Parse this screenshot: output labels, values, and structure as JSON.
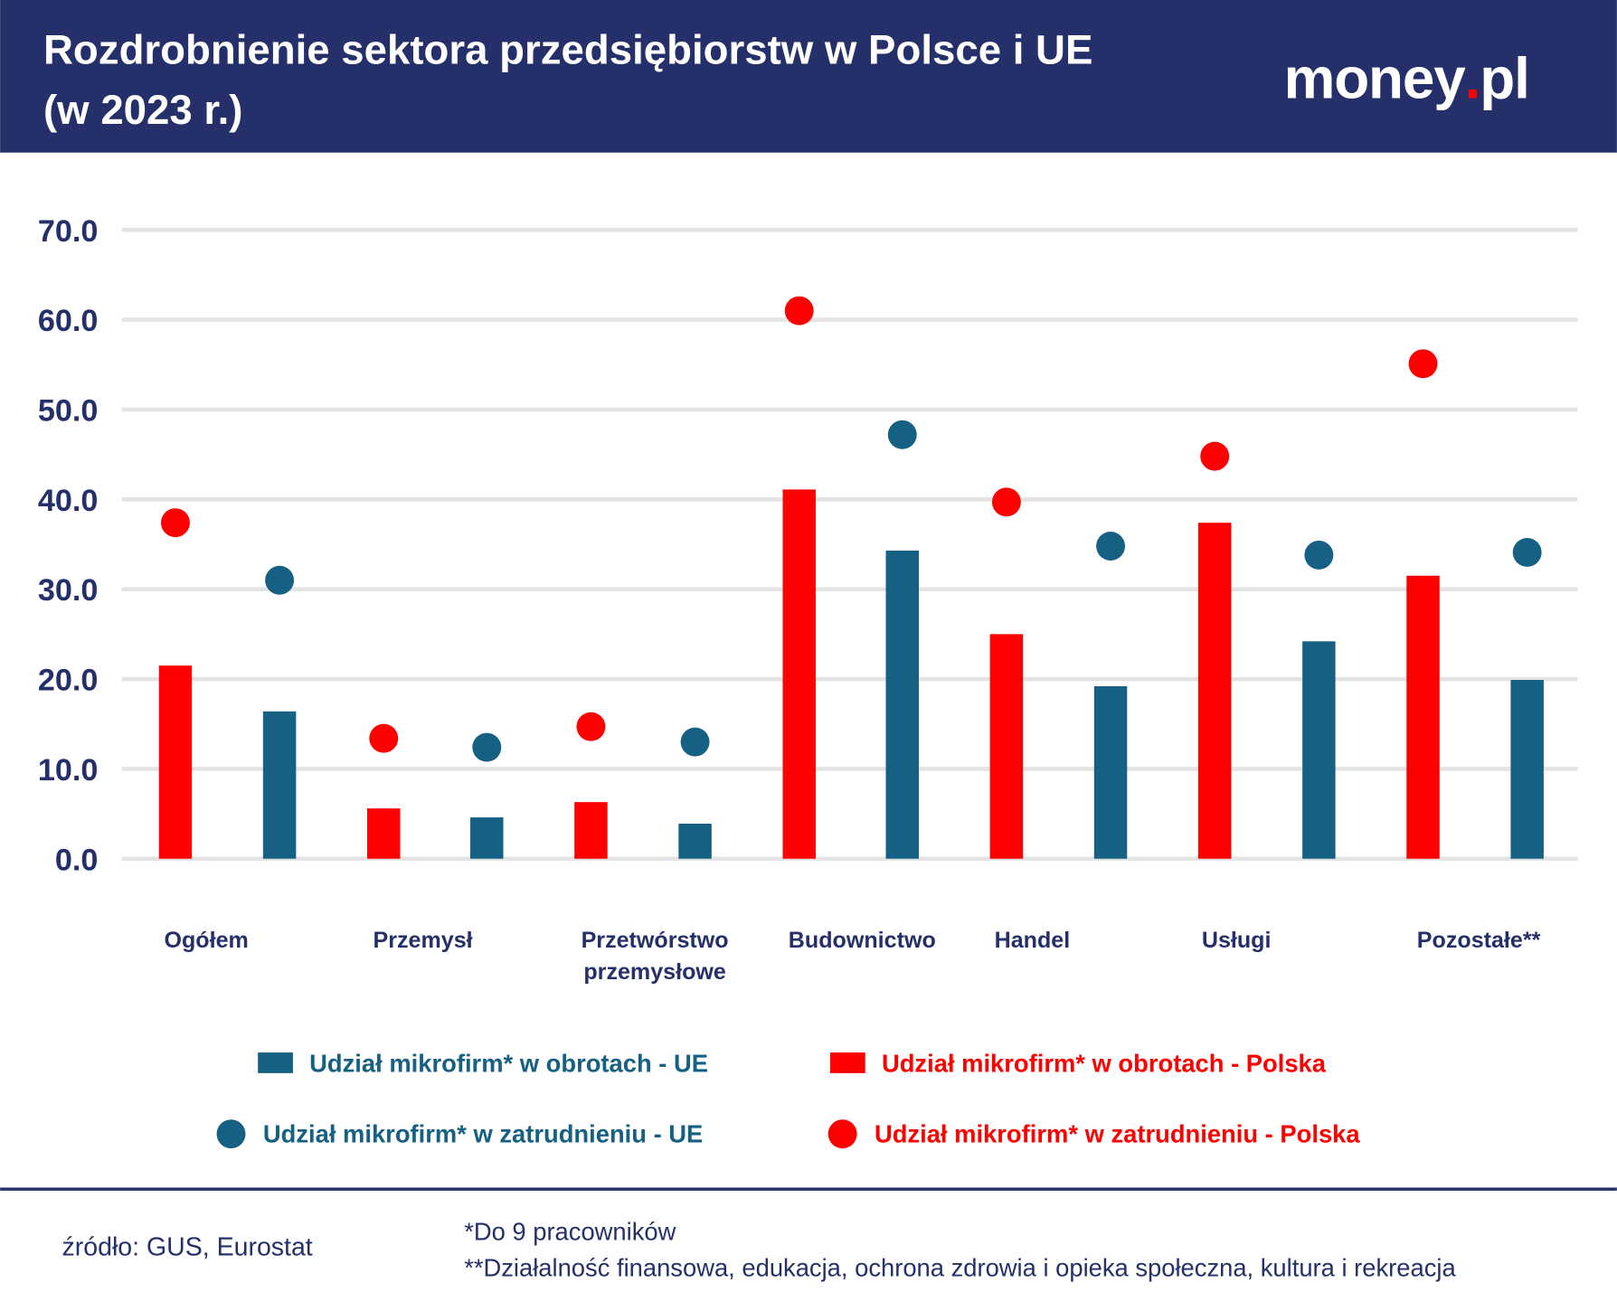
{
  "header": {
    "title_line1": "Rozdrobnienie sektora przedsiębiorstw w Polsce i UE",
    "title_line2": "(w 2023 r.)",
    "logo_text": "money.pl"
  },
  "colors": {
    "header_bg": "#25306b",
    "ue": "#166083",
    "polska": "#ff0000",
    "grid": "#e3e3e3",
    "text": "#25306b"
  },
  "chart_data": {
    "type": "bar",
    "categories": [
      "Ogółem",
      "Przemysł",
      [
        "Przetwórstwo",
        "przemysłowe"
      ],
      "Budownictwo",
      "Handel",
      "Usługi",
      "Pozostałe**"
    ],
    "ylim": [
      0,
      70
    ],
    "yticks": [
      "0.0",
      "10.0",
      "20.0",
      "30.0",
      "40.0",
      "50.0",
      "60.0",
      "70.0"
    ],
    "grid": true,
    "legend_position": "bottom",
    "series": [
      {
        "name": "Udział mikrofirm* w obrotach - Polska",
        "kind": "bar",
        "color": "#ff0000",
        "values": [
          21.5,
          5.6,
          6.3,
          41.1,
          25.0,
          37.4,
          31.5
        ]
      },
      {
        "name": "Udział mikrofirm* w obrotach - UE",
        "kind": "bar",
        "color": "#166083",
        "values": [
          16.4,
          4.6,
          3.9,
          34.3,
          19.2,
          24.2,
          19.9
        ]
      },
      {
        "name": "Udział mikrofirm* w zatrudnieniu - Polska",
        "kind": "dot",
        "color": "#ff0000",
        "values": [
          37.4,
          13.4,
          14.7,
          61.0,
          39.7,
          44.8,
          55.1
        ]
      },
      {
        "name": "Udział mikrofirm* w zatrudnieniu - UE",
        "kind": "dot",
        "color": "#166083",
        "values": [
          31.0,
          12.4,
          13.0,
          47.2,
          34.8,
          33.8,
          34.1
        ]
      }
    ]
  },
  "footer": {
    "source": "źródło: GUS, Eurostat",
    "note1": "*Do 9 pracowników",
    "note2": "**Działalność finansowa, edukacja, ochrona zdrowia i opieka społeczna, kultura i rekreacja"
  }
}
